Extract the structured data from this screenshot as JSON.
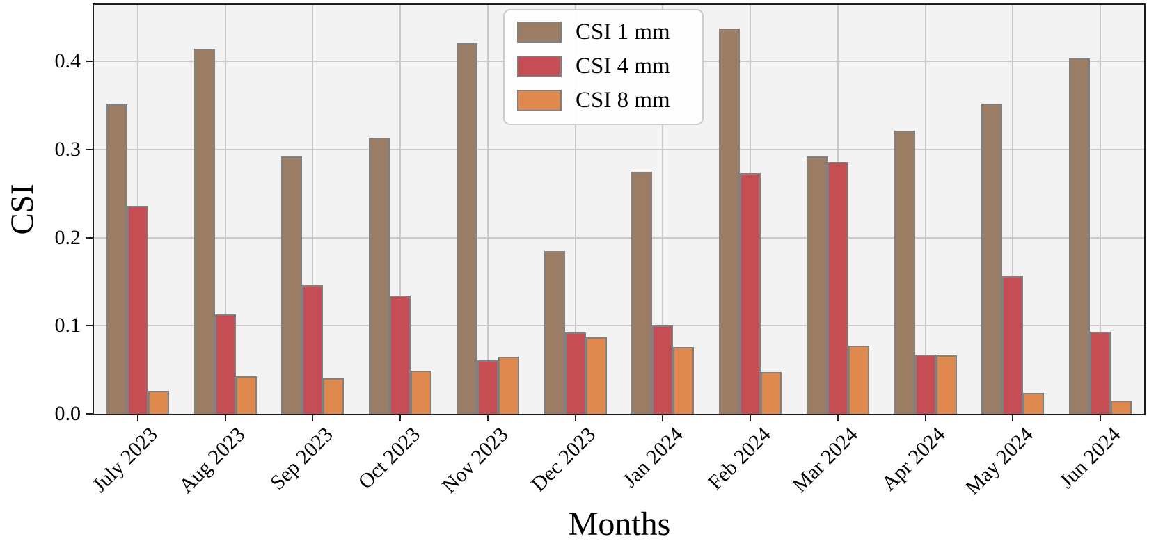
{
  "chart_data": {
    "type": "bar",
    "title": "",
    "xlabel": "Months",
    "ylabel": "CSI",
    "ylim": [
      0,
      0.46
    ],
    "grid": true,
    "legend_position": "upper center",
    "ytick_labels": [
      "0.0",
      "0.1",
      "0.2",
      "0.3",
      "0.4"
    ],
    "ytick_values": [
      0.0,
      0.1,
      0.2,
      0.3,
      0.4
    ],
    "categories": [
      "July 2023",
      "Aug 2023",
      "Sep 2023",
      "Oct 2023",
      "Nov 2023",
      "Dec 2023",
      "Jan 2024",
      "Feb 2024",
      "Mar 2024",
      "Apr 2024",
      "May 2024",
      "Jun 2024"
    ],
    "series": [
      {
        "name": "CSI 1 mm",
        "color": "#9A7D64",
        "values": [
          0.351,
          0.414,
          0.292,
          0.313,
          0.421,
          0.185,
          0.275,
          0.437,
          0.292,
          0.321,
          0.352,
          0.403
        ]
      },
      {
        "name": "CSI 4 mm",
        "color": "#C44E54",
        "values": [
          0.236,
          0.113,
          0.146,
          0.134,
          0.061,
          0.092,
          0.1,
          0.273,
          0.286,
          0.067,
          0.156,
          0.093
        ]
      },
      {
        "name": "CSI 8 mm",
        "color": "#E0894F",
        "values": [
          0.026,
          0.043,
          0.04,
          0.049,
          0.065,
          0.087,
          0.076,
          0.047,
          0.077,
          0.066,
          0.024,
          0.015
        ]
      }
    ],
    "colors": {
      "plot_background": "#F3F3F3",
      "grid": "#c9c9c9",
      "bar_edge": "#808080",
      "spine": "#1c1c1c"
    }
  }
}
